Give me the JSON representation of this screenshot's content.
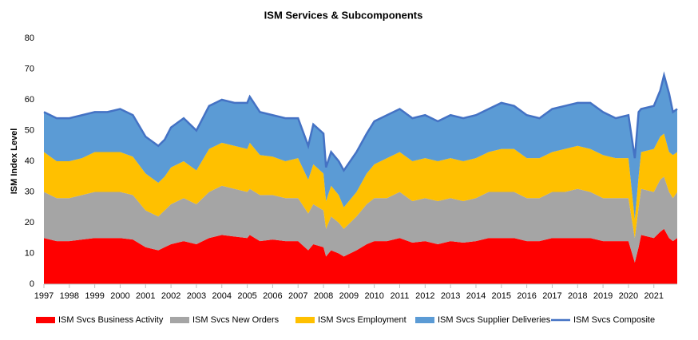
{
  "chart_data": {
    "type": "stacked-area-line",
    "title": "ISM Services & Subcomponents",
    "y_label": "ISM Index Level",
    "x": [
      1997.0,
      1997.5,
      1998.0,
      1998.5,
      1999.0,
      1999.5,
      2000.0,
      2000.5,
      2001.0,
      2001.5,
      2001.75,
      2002.0,
      2002.5,
      2003.0,
      2003.5,
      2004.0,
      2004.5,
      2005.0,
      2005.1,
      2005.5,
      2006.0,
      2006.5,
      2007.0,
      2007.4,
      2007.6,
      2008.0,
      2008.1,
      2008.3,
      2008.6,
      2008.8,
      2009.3,
      2009.7,
      2010.0,
      2010.5,
      2011.0,
      2011.5,
      2012.0,
      2012.5,
      2013.0,
      2013.5,
      2014.0,
      2014.5,
      2015.0,
      2015.5,
      2016.0,
      2016.5,
      2017.0,
      2017.5,
      2018.0,
      2018.5,
      2019.0,
      2019.5,
      2020.0,
      2020.25,
      2020.4,
      2020.5,
      2021.0,
      2021.25,
      2021.4,
      2021.6,
      2021.75,
      2021.92
    ],
    "series": [
      {
        "name": "ISM Svcs Business Activity",
        "color": "#ff0000",
        "kind": "area",
        "values": [
          15,
          14,
          14,
          14.5,
          15,
          15,
          15,
          14.5,
          12,
          11,
          12,
          13,
          14,
          13,
          15,
          16,
          15.5,
          15,
          16,
          14,
          14.5,
          14,
          14,
          11,
          13,
          12,
          9,
          11,
          10,
          9,
          11,
          13,
          14,
          14,
          15,
          13.5,
          14,
          13,
          14,
          13.5,
          14,
          15,
          15,
          15,
          14,
          14,
          15,
          15,
          15,
          15,
          14,
          14,
          14,
          7,
          12,
          16,
          15,
          17,
          18,
          15,
          14,
          15
        ]
      },
      {
        "name": "ISM Svcs New Orders",
        "color": "#a5a5a5",
        "kind": "area",
        "values": [
          15,
          14,
          14,
          14.5,
          15,
          15,
          15,
          14.5,
          12,
          11,
          12,
          13,
          14,
          13,
          15,
          16,
          15.5,
          15,
          15,
          15,
          14.5,
          14,
          14,
          12,
          13,
          12,
          9,
          11,
          10,
          9,
          11,
          13,
          14,
          14,
          15,
          13.5,
          14,
          14,
          14,
          13.5,
          14,
          15,
          15,
          15,
          14,
          14,
          15,
          15,
          16,
          15,
          14,
          14,
          14,
          8,
          13,
          15,
          15,
          17,
          17,
          15,
          14,
          15
        ]
      },
      {
        "name": "ISM Svcs Employment",
        "color": "#ffc000",
        "kind": "area",
        "values": [
          13,
          12,
          12,
          12,
          13,
          13,
          13,
          12.5,
          12,
          11,
          11,
          12,
          12,
          11,
          14,
          14,
          14,
          14,
          15,
          13,
          12.5,
          12,
          13,
          11,
          13,
          12,
          9,
          10,
          9,
          7,
          8,
          10,
          11,
          13,
          13,
          13,
          13,
          13,
          13,
          13,
          13,
          13,
          14,
          14,
          13,
          13,
          13,
          14,
          14,
          14,
          14,
          13,
          13,
          6,
          10,
          12,
          14,
          14,
          14,
          13,
          14,
          13
        ]
      },
      {
        "name": "ISM Svcs Supplier Deliveries",
        "color": "#5b9bd5",
        "kind": "area",
        "values": [
          13,
          14,
          14,
          14,
          13,
          13,
          14,
          13.5,
          12,
          12,
          12,
          13,
          14,
          13,
          14,
          14,
          14,
          15,
          15,
          14,
          13.5,
          14,
          13,
          11,
          13,
          13,
          11,
          11,
          11,
          12,
          13,
          13,
          14,
          14,
          14,
          14,
          14,
          13,
          14,
          14,
          14,
          14,
          15,
          14,
          14,
          13,
          14,
          14,
          14,
          15,
          14,
          13,
          14,
          20,
          21,
          14,
          14,
          15,
          19,
          19,
          14,
          14
        ]
      },
      {
        "name": "ISM Svcs Composite",
        "color": "#4472c4",
        "kind": "line",
        "values": [
          56,
          54,
          54,
          55,
          56,
          56,
          57,
          55,
          48,
          45,
          47,
          51,
          54,
          50,
          58,
          60,
          59,
          59,
          61,
          56,
          55,
          54,
          54,
          45,
          52,
          49,
          38,
          43,
          40,
          37,
          43,
          49,
          53,
          55,
          57,
          54,
          55,
          53,
          55,
          54,
          55,
          57,
          59,
          58,
          55,
          54,
          57,
          58,
          59,
          59,
          56,
          54,
          55,
          41,
          56,
          57,
          58,
          63,
          68,
          62,
          56,
          57
        ]
      }
    ],
    "xlim": [
      1997,
      2021.92
    ],
    "xticks": [
      1997,
      1998,
      1999,
      2000,
      2001,
      2002,
      2003,
      2004,
      2005,
      2006,
      2007,
      2008,
      2009,
      2010,
      2011,
      2012,
      2013,
      2014,
      2015,
      2016,
      2017,
      2018,
      2019,
      2020,
      2021
    ],
    "ylim": [
      0,
      80
    ],
    "yticks": [
      0,
      10,
      20,
      30,
      40,
      50,
      60,
      70,
      80
    ],
    "stacked": true,
    "legend": "bottom"
  }
}
